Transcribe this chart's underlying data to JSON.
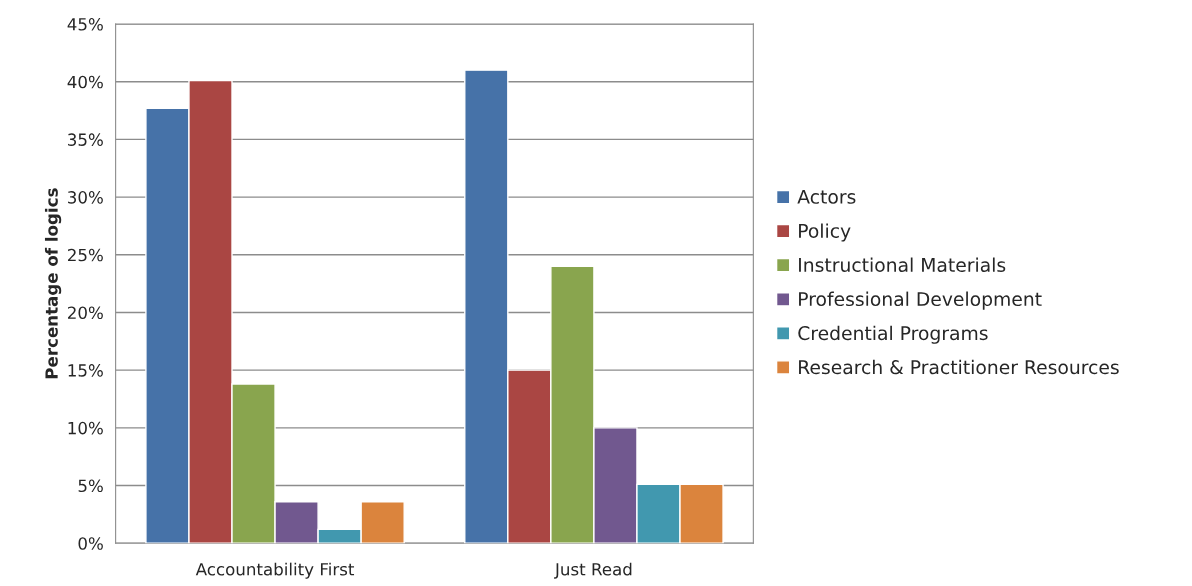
{
  "chart_data": {
    "type": "bar",
    "ylabel": "Percentage of logics",
    "categories": [
      "Accountability First",
      "Just Read"
    ],
    "series": [
      {
        "name": "Actors",
        "color": "#4672a8",
        "values": [
          37.7,
          41.0
        ]
      },
      {
        "name": "Policy",
        "color": "#aa4643",
        "values": [
          40.1,
          15.0
        ]
      },
      {
        "name": "Instructional Materials",
        "color": "#89a54e",
        "values": [
          13.8,
          24.0
        ]
      },
      {
        "name": "Professional Development",
        "color": "#71588f",
        "values": [
          3.6,
          10.0
        ]
      },
      {
        "name": "Credential Programs",
        "color": "#4198af",
        "values": [
          1.2,
          5.1
        ]
      },
      {
        "name": "Research & Practitioner Resources",
        "color": "#db843d",
        "values": [
          3.6,
          5.1
        ]
      }
    ],
    "ylim": [
      0,
      45
    ],
    "yticks": [
      {
        "value": 0,
        "label": "0%"
      },
      {
        "value": 5,
        "label": "5%"
      },
      {
        "value": 10,
        "label": "10%"
      },
      {
        "value": 15,
        "label": "15%"
      },
      {
        "value": 20,
        "label": "20%"
      },
      {
        "value": 25,
        "label": "25%"
      },
      {
        "value": 30,
        "label": "30%"
      },
      {
        "value": 35,
        "label": "35%"
      },
      {
        "value": 40,
        "label": "40%"
      },
      {
        "value": 45,
        "label": "45%"
      }
    ],
    "grid": "y",
    "legend": "right"
  }
}
